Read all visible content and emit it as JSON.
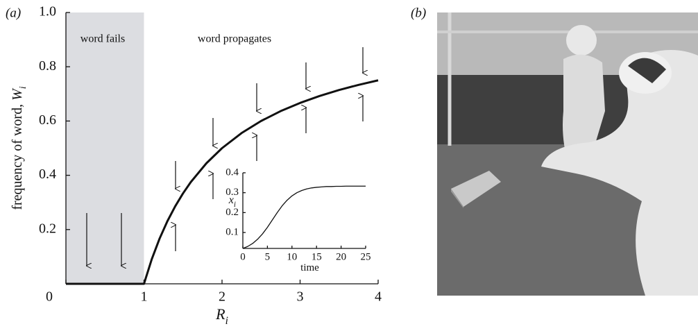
{
  "panel_labels": [
    "(a)",
    "(b)"
  ],
  "chart_data": [
    {
      "type": "line",
      "x_label": [
        "R",
        "i"
      ],
      "y_label": [
        "frequency of word, ",
        "W",
        "i"
      ],
      "annotations": [
        "word fails",
        "word propagates"
      ],
      "x": [
        0,
        0.5,
        1,
        1.1,
        1.2,
        1.3,
        1.4,
        1.5,
        1.6,
        1.8,
        2,
        2.25,
        2.5,
        2.75,
        3,
        3.25,
        3.5,
        3.75,
        4
      ],
      "series": [
        {
          "color": "#111111",
          "values": [
            0,
            0,
            0,
            0.0909,
            0.1667,
            0.2308,
            0.2857,
            0.3333,
            0.375,
            0.4444,
            0.5,
            0.5556,
            0.6,
            0.6364,
            0.6667,
            0.6923,
            0.7143,
            0.7333,
            0.75
          ]
        }
      ],
      "xlim": [
        0,
        4
      ],
      "ylim": [
        0,
        1
      ],
      "xticks": [
        0,
        1,
        2,
        3,
        4
      ],
      "yticks": [
        0.2,
        0.4,
        0.6,
        0.8,
        {
          "value": 1,
          "label": "1.0"
        }
      ],
      "shaded_xrange": [
        0,
        1
      ],
      "shade_color": "#dcdde1"
    },
    {
      "type": "line",
      "x_label": [
        "time"
      ],
      "y_label": [
        "x",
        "i"
      ],
      "x": [
        0,
        1,
        2,
        3,
        4,
        5,
        6,
        7,
        8,
        9,
        10,
        11,
        12,
        13,
        14,
        15,
        16,
        17,
        18,
        19,
        20,
        21,
        22,
        23,
        24,
        25
      ],
      "series": [
        {
          "color": "#111111",
          "values": [
            0.02,
            0.03,
            0.045,
            0.066,
            0.093,
            0.126,
            0.163,
            0.2,
            0.234,
            0.262,
            0.284,
            0.3,
            0.311,
            0.319,
            0.324,
            0.327,
            0.329,
            0.331,
            0.331,
            0.332,
            0.332,
            0.333,
            0.333,
            0.333,
            0.333,
            0.333
          ]
        }
      ],
      "xlim": [
        0,
        25
      ],
      "ylim": [
        0.02,
        0.4
      ],
      "xticks": [
        0,
        5,
        10,
        15,
        20,
        25
      ],
      "yticks": [
        0.1,
        0.2,
        0.3,
        0.4
      ]
    }
  ]
}
